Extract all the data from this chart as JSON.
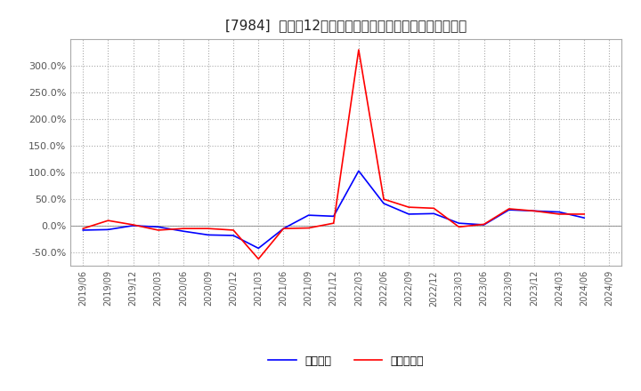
{
  "title": "[7984]  利益だ12か月移動合計の対前年同期増減率の推移",
  "title_fontsize": 11,
  "background_color": "#ffffff",
  "plot_bg_color": "#ffffff",
  "grid_color": "#aaaaaa",
  "x_labels": [
    "2019/06",
    "2019/09",
    "2019/12",
    "2020/03",
    "2020/06",
    "2020/09",
    "2020/12",
    "2021/03",
    "2021/06",
    "2021/09",
    "2021/12",
    "2022/03",
    "2022/06",
    "2022/09",
    "2022/12",
    "2023/03",
    "2023/06",
    "2023/09",
    "2023/12",
    "2024/03",
    "2024/06",
    "2024/09"
  ],
  "operating_profit": [
    -8.0,
    -7.0,
    0.5,
    -2.0,
    -10.0,
    -17.0,
    -18.0,
    -42.0,
    -5.0,
    20.0,
    18.0,
    103.0,
    42.0,
    22.0,
    23.0,
    5.0,
    2.0,
    30.0,
    28.0,
    26.0,
    15.0,
    null
  ],
  "net_profit": [
    -5.0,
    10.0,
    2.0,
    -8.0,
    -5.0,
    -5.0,
    -8.0,
    -62.0,
    -5.0,
    -4.0,
    5.0,
    330.0,
    50.0,
    35.0,
    33.0,
    -2.0,
    3.0,
    32.0,
    28.0,
    22.0,
    22.0,
    null
  ],
  "ylim": [
    -75,
    350
  ],
  "yticks": [
    -50.0,
    0.0,
    50.0,
    100.0,
    150.0,
    200.0,
    250.0,
    300.0
  ],
  "line_color_operating": "#0000ff",
  "line_color_net": "#ff0000",
  "legend_operating": "経常利益",
  "legend_net": "当期純利益",
  "legend_fontsize": 9
}
